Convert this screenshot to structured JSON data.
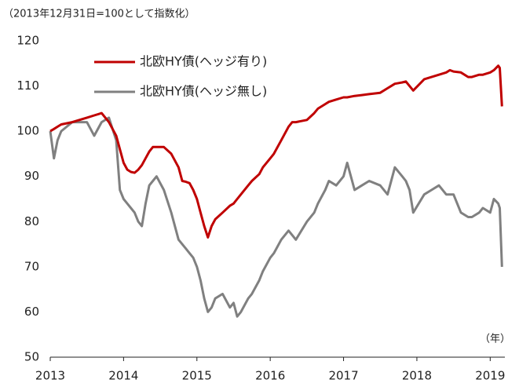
{
  "chart_data": {
    "type": "line",
    "note": "（2013年12月31日=100として指数化）",
    "x_unit": "（年）",
    "x": [
      2013.0,
      2013.05,
      2013.1,
      2013.15,
      2013.3,
      2013.5,
      2013.6,
      2013.7,
      2013.8,
      2013.9,
      2013.95,
      2014.0,
      2014.05,
      2014.1,
      2014.15,
      2014.2,
      2014.25,
      2014.3,
      2014.35,
      2014.4,
      2014.45,
      2014.55,
      2014.65,
      2014.75,
      2014.8,
      2014.85,
      2014.9,
      2014.95,
      2015.0,
      2015.05,
      2015.1,
      2015.15,
      2015.2,
      2015.25,
      2015.35,
      2015.45,
      2015.5,
      2015.55,
      2015.6,
      2015.7,
      2015.75,
      2015.85,
      2015.9,
      2016.0,
      2016.05,
      2016.15,
      2016.25,
      2016.3,
      2016.35,
      2016.5,
      2016.6,
      2016.65,
      2016.75,
      2016.8,
      2016.9,
      2017.0,
      2017.05,
      2017.15,
      2017.25,
      2017.35,
      2017.5,
      2017.6,
      2017.7,
      2017.8,
      2017.85,
      2017.9,
      2017.95,
      2018.1,
      2018.2,
      2018.3,
      2018.4,
      2018.45,
      2018.5,
      2018.6,
      2018.7,
      2018.75,
      2018.85,
      2018.9,
      2019.0,
      2019.05,
      2019.11,
      2019.13,
      2019.16
    ],
    "series": [
      {
        "name": "北欧HY債(ヘッジ有り)",
        "color": "#c00000",
        "values": [
          100,
          100.5,
          101,
          101.5,
          102,
          103,
          103.5,
          104,
          102,
          99,
          96,
          93,
          91.5,
          91,
          90.8,
          91.5,
          92.5,
          94,
          95.5,
          96.5,
          96.5,
          96.5,
          95,
          92,
          89,
          88.8,
          88.5,
          87,
          85,
          82,
          79,
          76.5,
          79,
          80.5,
          82,
          83.5,
          84,
          85,
          86,
          88,
          89,
          90.5,
          92,
          94,
          95,
          98,
          101,
          102,
          102,
          102.5,
          104,
          105,
          106,
          106.5,
          107,
          107.5,
          107.5,
          107.8,
          108,
          108.2,
          108.5,
          109.5,
          110.5,
          110.8,
          111,
          110,
          109,
          111.5,
          112,
          112.5,
          113,
          113.5,
          113.2,
          113,
          112,
          112,
          112.5,
          112.5,
          113,
          113.5,
          114.5,
          114,
          105.5
        ]
      },
      {
        "name": "北欧HY債(ヘッジ無し)",
        "color": "#808080",
        "values": [
          100,
          94,
          98,
          100,
          102,
          102,
          99,
          102,
          103,
          98,
          87,
          85,
          84,
          83,
          82,
          80,
          79,
          84,
          88,
          89,
          90,
          87,
          82,
          76,
          75,
          74,
          73,
          72,
          70,
          67,
          63,
          60,
          61,
          63,
          64,
          61,
          62,
          59,
          60,
          63,
          64,
          67,
          69,
          72,
          73,
          76,
          78,
          77,
          76,
          80,
          82,
          84,
          87,
          89,
          88,
          90,
          93,
          87,
          88,
          89,
          88,
          86,
          92,
          90,
          89,
          87,
          82,
          86,
          87,
          88,
          86,
          86,
          86,
          82,
          81,
          81,
          82,
          83,
          82,
          85,
          84,
          83,
          70
        ]
      }
    ],
    "xlim": [
      2013,
      2019.2
    ],
    "xticks": [
      2013,
      2014,
      2015,
      2016,
      2017,
      2018,
      2019
    ],
    "ylim": [
      50,
      120
    ],
    "yticks": [
      50,
      60,
      70,
      80,
      90,
      100,
      110,
      120
    ],
    "legend": "upper left"
  }
}
